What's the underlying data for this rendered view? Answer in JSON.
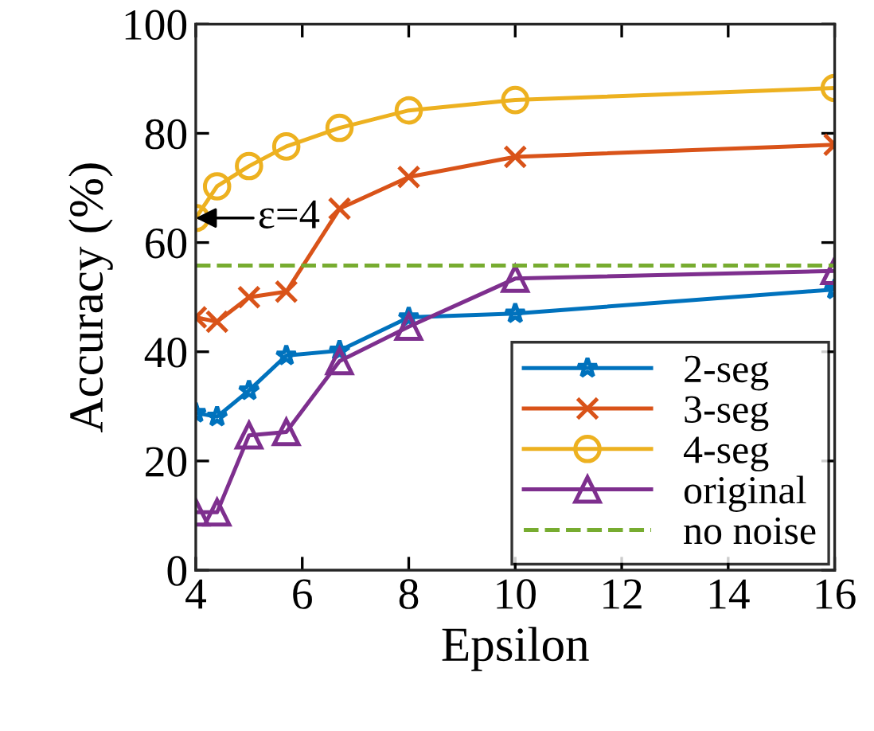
{
  "chart_data": {
    "type": "line",
    "xlabel": "Epsilon",
    "ylabel": "Accuracy (%)",
    "x": [
      4,
      4.4,
      5,
      5.7,
      6.7,
      8,
      10,
      16
    ],
    "series": [
      {
        "name": "2-seg",
        "color": "#0072bd",
        "marker": "star",
        "values": [
          28.8,
          28.1,
          32.9,
          39.3,
          40.2,
          46.3,
          47,
          51.4
        ]
      },
      {
        "name": "3-seg",
        "color": "#d95319",
        "marker": "cross",
        "values": [
          46.3,
          45.5,
          50,
          51,
          66.2,
          72,
          75.7,
          77.9
        ]
      },
      {
        "name": "4-seg",
        "color": "#edb120",
        "marker": "circle",
        "values": [
          64.5,
          70.3,
          74,
          77.6,
          81,
          84.2,
          86.1,
          88.3
        ]
      },
      {
        "name": "original",
        "color": "#7e2f8e",
        "marker": "triangle",
        "values": [
          10.6,
          10.6,
          24.7,
          25.3,
          38.3,
          44.6,
          53.4,
          54.8
        ]
      }
    ],
    "ref_lines": [
      {
        "axis": "y",
        "value": 55.8,
        "label": "no noise",
        "color": "#77ac30",
        "line_style": "dashed"
      }
    ],
    "annotations": [
      {
        "text": "ε=4",
        "x": 4,
        "y": 64.5
      }
    ],
    "xlim": [
      4,
      16
    ],
    "xticks": [
      4,
      6,
      8,
      10,
      12,
      14,
      16
    ],
    "ylim": [
      0,
      100
    ],
    "yticks": [
      0,
      20,
      40,
      60,
      80,
      100
    ],
    "grid": false,
    "legend": "bottom right",
    "line_style": "solid"
  }
}
